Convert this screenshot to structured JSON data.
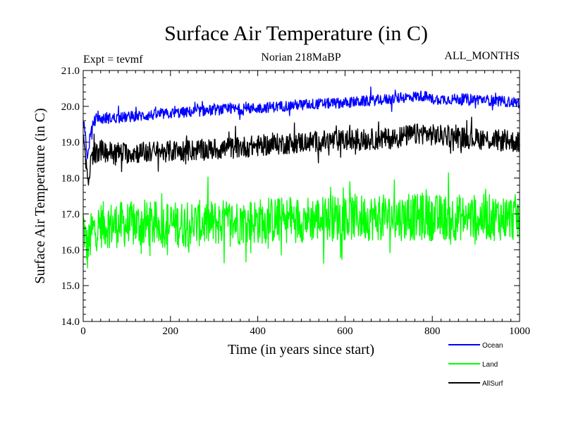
{
  "chart_data": {
    "type": "line",
    "title": "Surface Air Temperature (in C)",
    "experiment_label": "Expt = tevmf",
    "subtitle": "Norian 218MaBP",
    "period_label": "ALL_MONTHS",
    "xlabel": "Time (in years since start)",
    "ylabel": "Surface Air Temperature (in C)",
    "xlim": [
      0,
      1000
    ],
    "ylim": [
      14.0,
      21.0
    ],
    "x_ticks": [
      0,
      200,
      400,
      600,
      800,
      1000
    ],
    "x_tick_labels": [
      "0",
      "200",
      "400",
      "600",
      "800",
      "1000"
    ],
    "y_ticks": [
      14.0,
      15.0,
      16.0,
      17.0,
      18.0,
      19.0,
      20.0,
      21.0
    ],
    "y_tick_labels": [
      "14.0",
      "15.0",
      "16.0",
      "17.0",
      "18.0",
      "19.0",
      "20.0",
      "21.0"
    ],
    "legend_position": "bottom-right",
    "series": [
      {
        "name": "Ocean",
        "color": "#0000ff",
        "noise_amplitude": 0.15,
        "spike_amplitude": 0.12,
        "x": [
          0,
          5,
          10,
          15,
          25,
          40,
          100,
          200,
          300,
          400,
          500,
          600,
          700,
          780,
          800,
          900,
          1000
        ],
        "y": [
          19.6,
          19.2,
          18.5,
          19.1,
          19.6,
          19.65,
          19.7,
          19.8,
          19.9,
          19.95,
          20.05,
          20.1,
          20.2,
          20.3,
          20.2,
          20.2,
          20.1
        ]
      },
      {
        "name": "Land",
        "color": "#00ff00",
        "noise_amplitude": 0.65,
        "spike_amplitude": 0.4,
        "x": [
          0,
          5,
          10,
          20,
          40,
          200,
          400,
          600,
          800,
          1000
        ],
        "y": [
          16.8,
          16.3,
          16.0,
          16.5,
          16.7,
          16.7,
          16.8,
          16.9,
          16.9,
          16.9
        ]
      },
      {
        "name": "AllSurf",
        "color": "#000000",
        "noise_amplitude": 0.3,
        "spike_amplitude": 0.18,
        "x": [
          0,
          5,
          10,
          15,
          25,
          40,
          100,
          200,
          300,
          400,
          500,
          600,
          700,
          780,
          800,
          900,
          1000
        ],
        "y": [
          19.0,
          18.6,
          17.8,
          18.3,
          18.7,
          18.75,
          18.7,
          18.75,
          18.8,
          18.9,
          19.0,
          19.05,
          19.1,
          19.25,
          19.2,
          19.1,
          19.0
        ]
      }
    ]
  }
}
